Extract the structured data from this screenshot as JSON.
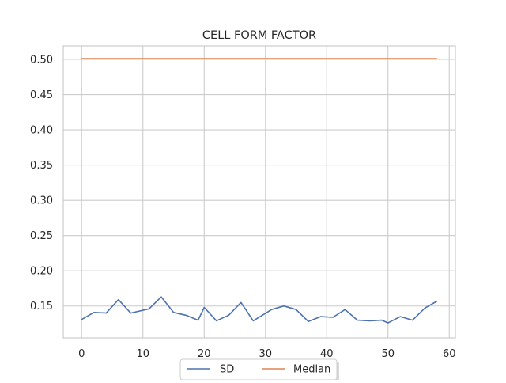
{
  "chart_data": {
    "type": "line",
    "title": "CELL FORM FACTOR",
    "xlabel": "",
    "ylabel": "",
    "xlim": [
      -3,
      61
    ],
    "ylim": [
      0.1048,
      0.5
    ],
    "xticks": [
      0,
      10,
      20,
      30,
      40,
      50,
      60
    ],
    "xtick_labels": [
      "0",
      "10",
      "20",
      "30",
      "40",
      "50",
      "60"
    ],
    "yticks": [
      0.15,
      0.2,
      0.25,
      0.3,
      0.35,
      0.4,
      0.45,
      0.5
    ],
    "ytick_labels": [
      "0.15",
      "0.20",
      "0.25",
      "0.30",
      "0.35",
      "0.40",
      "0.45",
      "0.50"
    ],
    "grid": true,
    "legend_position": "bottom-center",
    "colors": {
      "SD": "#4c72b0",
      "Median": "#dd8452"
    },
    "series": [
      {
        "name": "SD",
        "x": [
          0,
          2,
          4,
          6,
          8,
          11,
          13,
          15,
          17,
          19,
          20,
          22,
          24,
          26,
          28,
          31,
          33,
          35,
          37,
          39,
          41,
          43,
          45,
          47,
          49,
          50,
          52,
          54,
          56,
          58
        ],
        "values": [
          0.131,
          0.141,
          0.14,
          0.159,
          0.14,
          0.146,
          0.163,
          0.141,
          0.137,
          0.13,
          0.148,
          0.129,
          0.137,
          0.155,
          0.129,
          0.145,
          0.15,
          0.145,
          0.128,
          0.135,
          0.134,
          0.145,
          0.13,
          0.129,
          0.13,
          0.126,
          0.135,
          0.13,
          0.147,
          0.157
        ]
      },
      {
        "name": "Median",
        "x": [
          0,
          58
        ],
        "values": [
          0.501,
          0.501
        ]
      }
    ]
  }
}
